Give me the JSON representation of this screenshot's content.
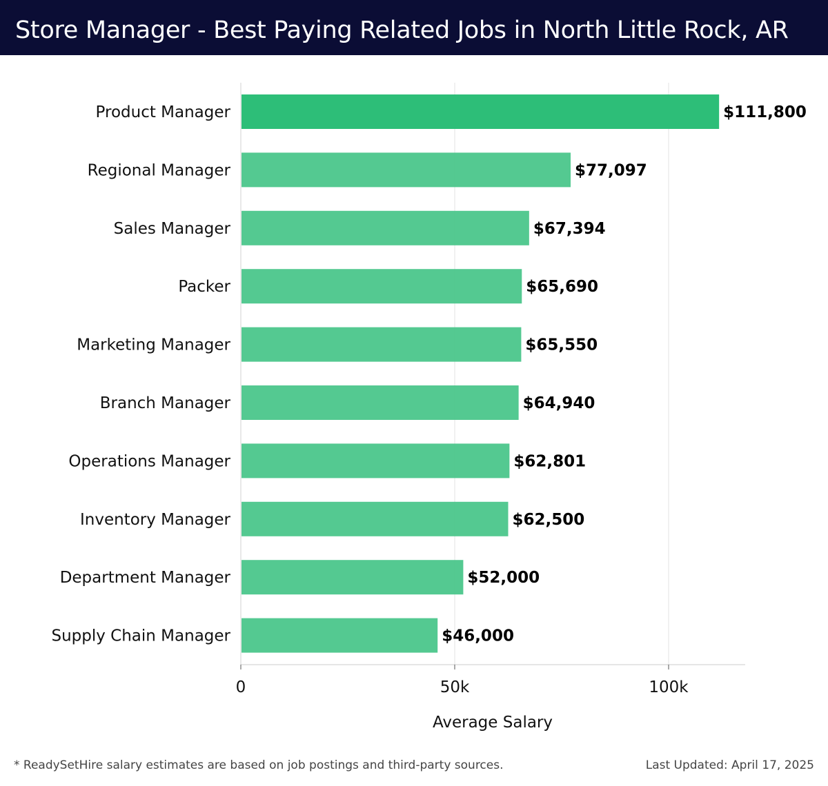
{
  "header": {
    "title": "Store Manager - Best Paying Related Jobs in North Little Rock, AR"
  },
  "chart_data": {
    "type": "bar",
    "orientation": "horizontal",
    "categories": [
      "Product Manager",
      "Regional Manager",
      "Sales Manager",
      "Packer",
      "Marketing Manager",
      "Branch Manager",
      "Operations Manager",
      "Inventory Manager",
      "Department Manager",
      "Supply Chain Manager"
    ],
    "values": [
      111800,
      77097,
      67394,
      65690,
      65550,
      64940,
      62801,
      62500,
      52000,
      46000
    ],
    "value_labels": [
      "$111,800",
      "$77,097",
      "$67,394",
      "$65,690",
      "$65,550",
      "$64,940",
      "$62,801",
      "$62,500",
      "$52,000",
      "$46,000"
    ],
    "xlabel": "Average Salary",
    "xlim": [
      0,
      117500
    ],
    "ticks": [
      0,
      50000,
      100000
    ],
    "tick_labels": [
      "0",
      "50k",
      "100k"
    ],
    "grid": true,
    "colors": {
      "top_bar": "#2dbe78",
      "bars": "#4bc68b",
      "label": "#000000",
      "grid": "#e3e3e3"
    }
  },
  "footer": {
    "note": "* ReadySetHire salary estimates are based on job postings and third-party sources.",
    "updated": "Last Updated: April 17, 2025"
  }
}
